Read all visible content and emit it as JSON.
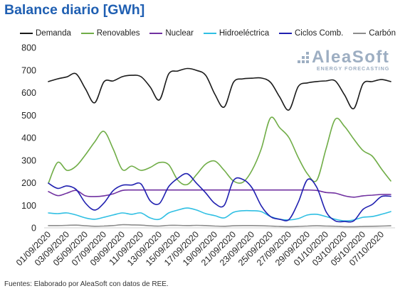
{
  "chart_data": {
    "type": "line",
    "title": "Balance diario [GWh]",
    "x": [
      "01/09/2020",
      "02/09/2020",
      "03/09/2020",
      "04/09/2020",
      "05/09/2020",
      "06/09/2020",
      "07/09/2020",
      "08/09/2020",
      "09/09/2020",
      "10/09/2020",
      "11/09/2020",
      "12/09/2020",
      "13/09/2020",
      "14/09/2020",
      "15/09/2020",
      "16/09/2020",
      "17/09/2020",
      "18/09/2020",
      "19/09/2020",
      "20/09/2020",
      "21/09/2020",
      "22/09/2020",
      "23/09/2020",
      "24/09/2020",
      "25/09/2020",
      "26/09/2020",
      "27/09/2020",
      "28/09/2020",
      "29/09/2020",
      "30/09/2020",
      "01/10/2020",
      "02/10/2020",
      "03/10/2020",
      "04/10/2020",
      "05/10/2020",
      "06/10/2020",
      "07/10/2020",
      "08/10/2020"
    ],
    "ylim": [
      0,
      800
    ],
    "y_ticks": [
      0,
      100,
      200,
      300,
      400,
      500,
      600,
      700,
      800
    ],
    "grid": false,
    "legend_position": "top",
    "series": [
      {
        "name": "Demanda",
        "color": "#1a1a1a",
        "values": [
          649,
          661,
          670,
          683,
          617,
          555,
          648,
          652,
          671,
          677,
          671,
          625,
          568,
          683,
          696,
          707,
          699,
          677,
          592,
          536,
          646,
          661,
          664,
          665,
          646,
          580,
          523,
          627,
          643,
          649,
          652,
          652,
          590,
          529,
          639,
          649,
          658,
          649
        ]
      },
      {
        "name": "Renovables",
        "color": "#70ad47",
        "values": [
          198,
          290,
          255,
          274,
          324,
          381,
          428,
          350,
          258,
          274,
          255,
          268,
          290,
          280,
          211,
          192,
          236,
          283,
          296,
          255,
          208,
          202,
          255,
          350,
          488,
          444,
          400,
          312,
          239,
          211,
          350,
          482,
          450,
          394,
          343,
          318,
          261,
          208
        ]
      },
      {
        "name": "Nuclear",
        "color": "#7030a0",
        "values": [
          161,
          143,
          154,
          166,
          142,
          139,
          142,
          151,
          166,
          168,
          168,
          168,
          168,
          168,
          168,
          168,
          168,
          168,
          168,
          168,
          168,
          168,
          168,
          168,
          168,
          168,
          168,
          168,
          168,
          166,
          157,
          154,
          142,
          136,
          142,
          145,
          148,
          148
        ]
      },
      {
        "name": "Hidroeléctrica",
        "color": "#2fbfe3",
        "values": [
          66,
          63,
          66,
          57,
          44,
          38,
          47,
          57,
          66,
          60,
          66,
          44,
          38,
          66,
          79,
          88,
          79,
          63,
          54,
          44,
          69,
          76,
          76,
          72,
          50,
          38,
          35,
          41,
          57,
          60,
          50,
          38,
          31,
          35,
          47,
          50,
          60,
          72
        ]
      },
      {
        "name": "Ciclos Comb.",
        "color": "#2020b0",
        "values": [
          198,
          175,
          186,
          170,
          110,
          79,
          110,
          165,
          189,
          190,
          195,
          120,
          108,
          183,
          220,
          240,
          198,
          155,
          108,
          100,
          210,
          215,
          178,
          98,
          50,
          38,
          37,
          113,
          214,
          180,
          72,
          31,
          28,
          31,
          82,
          104,
          139,
          140
        ]
      },
      {
        "name": "Carbón",
        "color": "#8c8c8c",
        "values": [
          10,
          10,
          11,
          12,
          9,
          7,
          8,
          10,
          14,
          13,
          12,
          9,
          8,
          11,
          11,
          10,
          11,
          10,
          8,
          7,
          9,
          10,
          10,
          9,
          8,
          6,
          5,
          6,
          8,
          9,
          8,
          7,
          5,
          5,
          6,
          7,
          8,
          9
        ]
      }
    ]
  },
  "logo": {
    "brand": "AleaSoft",
    "tagline": "ENERGY FORECASTING"
  },
  "footer": "Fuentes: Elaborado por AleaSoft con datos de REE."
}
